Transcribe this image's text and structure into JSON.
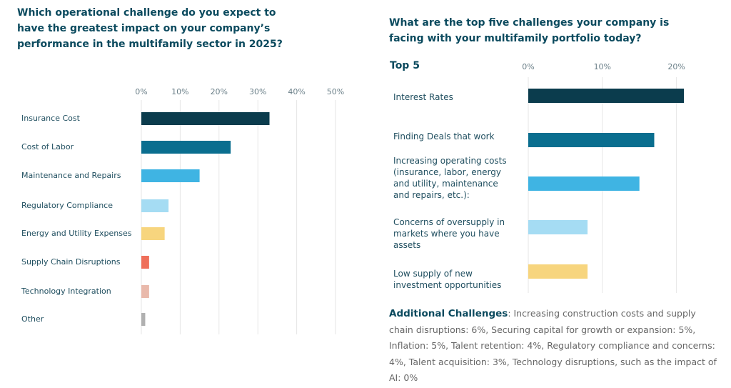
{
  "chart_data": [
    {
      "type": "bar",
      "orientation": "horizontal",
      "title": "Which operational challenge do you expect to have the greatest impact on your company’s performance in the multifamily sector in 2025?",
      "categories": [
        "Insurance Cost",
        "Cost of Labor",
        "Maintenance and Repairs",
        "Regulatory Compliance",
        "Energy and Utility Expenses",
        "Supply Chain Disruptions",
        "Technology Integration",
        "Other"
      ],
      "values": [
        33,
        23,
        15,
        7,
        6,
        2,
        2,
        1
      ],
      "colors": [
        "#0b3c4d",
        "#0a6e8f",
        "#3fb4e3",
        "#a5dcf3",
        "#f7d57e",
        "#ef6f5a",
        "#e9b9ab",
        "#b0b0b0"
      ],
      "xlim": [
        0,
        50
      ],
      "xticks": [
        {
          "value": 0,
          "label": "0%"
        },
        {
          "value": 10,
          "label": "10%"
        },
        {
          "value": 20,
          "label": "20%"
        },
        {
          "value": 30,
          "label": "30%"
        },
        {
          "value": 40,
          "label": "40%"
        },
        {
          "value": 50,
          "label": "50%"
        }
      ],
      "grid": true
    },
    {
      "type": "bar",
      "orientation": "horizontal",
      "title": "What are the top five challenges your company is facing with your multifamily portfolio today?",
      "subtitle": "Top 5",
      "categories": [
        "Interest Rates",
        "Finding Deals that work",
        "Increasing operating costs (insurance, labor, energy and utility, maintenance and repairs, etc.):",
        "Concerns of oversupply in markets where you have assets",
        "Low supply of new investment opportunities"
      ],
      "values": [
        21,
        17,
        15,
        8,
        8
      ],
      "colors": [
        "#0b3c4d",
        "#0a6e8f",
        "#3fb4e3",
        "#a5dcf3",
        "#f7d57e"
      ],
      "xlim": [
        0,
        21
      ],
      "xticks": [
        {
          "value": 0,
          "label": "0%"
        },
        {
          "value": 10,
          "label": "10%"
        },
        {
          "value": 20,
          "label": "20%"
        }
      ],
      "grid": true
    }
  ],
  "additional": {
    "heading": "Additional Challenges",
    "text": ": Increasing construction costs and supply chain disruptions: 6%, Securing capital for growth or expansion: 5%, Inflation: 5%, Talent retention: 4%, Regulatory compliance and concerns: 4%, Talent acquisition: 3%, Technology disruptions, such as the impact of AI: 0%"
  }
}
